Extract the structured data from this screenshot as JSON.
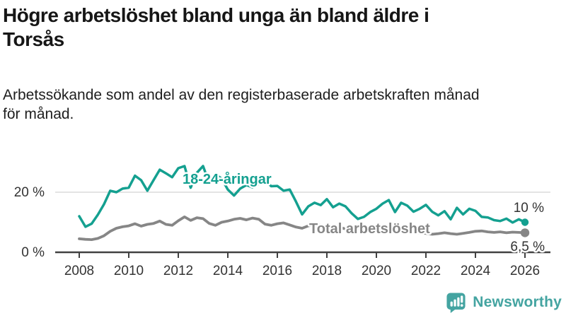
{
  "chart_data": {
    "type": "line",
    "title_lines": [
      "Högre arbetslöshet bland unga än bland äldre i",
      "Torsås"
    ],
    "subtitle_lines": [
      "Arbetssökande som andel av den registerbaserade arbetskraften månad",
      "för månad."
    ],
    "x_start": 2008,
    "x_step": 0.25,
    "x_unit": "year",
    "x_ticks": [
      "2008",
      "2010",
      "2012",
      "2014",
      "2016",
      "2018",
      "2020",
      "2022",
      "2024",
      "2026"
    ],
    "y_ticks": [
      {
        "value": 0,
        "label": "0 %"
      },
      {
        "value": 20,
        "label": "20 %"
      }
    ],
    "ylim": [
      0,
      30
    ],
    "grid": "horizontal-20-only",
    "legend_position": "inline-labels",
    "series": [
      {
        "name": "18-24-åringar",
        "color": "#14a090",
        "end_label": "10 %",
        "values": [
          12.0,
          8.5,
          9.5,
          12.5,
          16.0,
          20.5,
          20.0,
          21.2,
          21.5,
          25.5,
          24.0,
          20.5,
          24.0,
          27.5,
          26.3,
          25.0,
          28.0,
          28.7,
          21.5,
          26.5,
          28.7,
          23.0,
          26.0,
          24.5,
          20.9,
          18.9,
          21.2,
          22.4,
          21.6,
          22.8,
          24.0,
          22.0,
          22.1,
          20.5,
          20.9,
          16.9,
          12.6,
          15.3,
          16.5,
          15.7,
          17.7,
          15.0,
          16.2,
          15.3,
          13.0,
          11.1,
          11.8,
          13.4,
          14.5,
          16.2,
          17.4,
          13.4,
          16.5,
          15.5,
          13.5,
          14.5,
          15.8,
          13.5,
          12.3,
          13.7,
          11.0,
          14.8,
          12.6,
          14.5,
          13.8,
          11.8,
          11.6,
          10.7,
          10.4,
          11.2,
          9.9,
          11.0,
          10.0
        ]
      },
      {
        "name": "Total arbetslöshet",
        "color": "#868686",
        "end_label": "6,5 %",
        "values": [
          4.5,
          4.3,
          4.2,
          4.6,
          5.5,
          7.0,
          8.0,
          8.5,
          8.8,
          9.5,
          8.7,
          9.3,
          9.6,
          10.4,
          9.3,
          9.0,
          10.5,
          11.8,
          10.6,
          11.5,
          11.2,
          9.6,
          9.0,
          10.0,
          10.4,
          11.0,
          11.3,
          10.8,
          11.4,
          11.0,
          9.4,
          9.0,
          9.5,
          9.8,
          9.1,
          8.4,
          8.0,
          8.8,
          9.3,
          9.0,
          8.5,
          8.0,
          8.3,
          7.8,
          7.5,
          7.8,
          8.0,
          8.2,
          8.5,
          8.8,
          8.5,
          8.2,
          7.8,
          7.2,
          6.8,
          6.4,
          6.3,
          6.0,
          6.2,
          6.5,
          6.2,
          6.0,
          6.3,
          6.6,
          7.0,
          7.1,
          6.8,
          6.6,
          6.8,
          6.5,
          6.7,
          6.6,
          6.5
        ]
      }
    ],
    "axis_color": "#414141",
    "grid_color": "#dcdcdc",
    "tick_label_color": "#333333"
  },
  "footer": {
    "brand": "Newsworthy",
    "brand_color": "#44a4a1"
  }
}
